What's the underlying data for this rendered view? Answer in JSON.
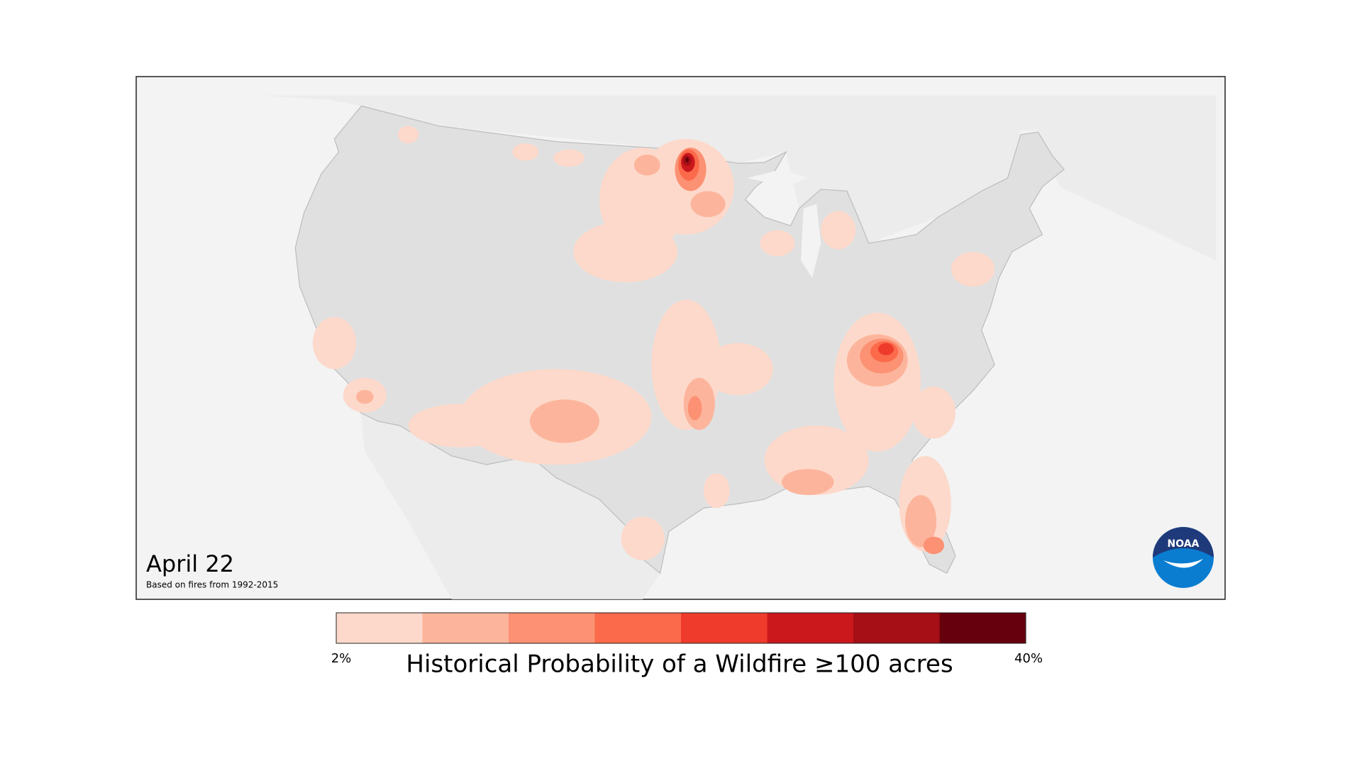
{
  "map": {
    "date": "April 22",
    "subtitle": "Based on fires from 1992-2015",
    "logo": "NOAA"
  },
  "legend": {
    "title": "Historical Probability of a Wildfire ≥100 acres",
    "min_label": "2%",
    "max_label": "40%",
    "colors": [
      "#fdd9cb",
      "#fcb59c",
      "#fc9173",
      "#fb6a4a",
      "#ef3b2c",
      "#cb181d",
      "#a50f15",
      "#67000d"
    ]
  }
}
